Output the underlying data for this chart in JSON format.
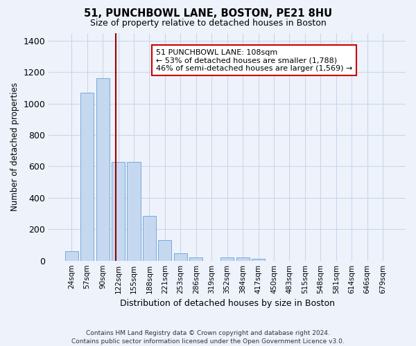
{
  "title": "51, PUNCHBOWL LANE, BOSTON, PE21 8HU",
  "subtitle": "Size of property relative to detached houses in Boston",
  "xlabel": "Distribution of detached houses by size in Boston",
  "ylabel": "Number of detached properties",
  "categories": [
    "24sqm",
    "57sqm",
    "90sqm",
    "122sqm",
    "155sqm",
    "188sqm",
    "221sqm",
    "253sqm",
    "286sqm",
    "319sqm",
    "352sqm",
    "384sqm",
    "417sqm",
    "450sqm",
    "483sqm",
    "515sqm",
    "548sqm",
    "581sqm",
    "614sqm",
    "646sqm",
    "679sqm"
  ],
  "values": [
    60,
    1070,
    1160,
    630,
    630,
    285,
    130,
    45,
    20,
    0,
    20,
    20,
    10,
    0,
    0,
    0,
    0,
    0,
    0,
    0,
    0
  ],
  "bar_color": "#c5d8f0",
  "bar_edge_color": "#6b9fd4",
  "grid_color": "#c8d4e8",
  "background_color": "#edf2fb",
  "vline_color": "#990000",
  "annotation_text": "51 PUNCHBOWL LANE: 108sqm\n← 53% of detached houses are smaller (1,788)\n46% of semi-detached houses are larger (1,569) →",
  "annotation_box_color": "#ffffff",
  "annotation_box_edgecolor": "#cc0000",
  "ylim": [
    0,
    1450
  ],
  "yticks": [
    0,
    200,
    400,
    600,
    800,
    1000,
    1200,
    1400
  ],
  "footer": "Contains HM Land Registry data © Crown copyright and database right 2024.\nContains public sector information licensed under the Open Government Licence v3.0."
}
